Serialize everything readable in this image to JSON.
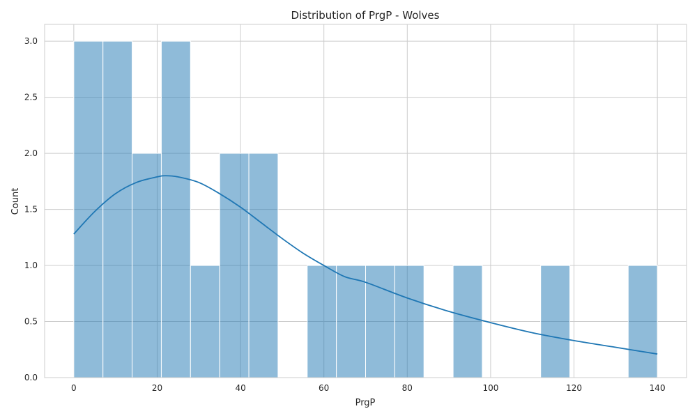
{
  "chart_data": {
    "type": "bar",
    "title": "Distribution of PrgP - Wolves",
    "xlabel": "PrgP",
    "ylabel": "Count",
    "xlim": [
      -7,
      147
    ],
    "ylim": [
      0,
      3.15
    ],
    "xticks": [
      0,
      20,
      40,
      60,
      80,
      100,
      120,
      140
    ],
    "xtick_labels": [
      "0",
      "20",
      "40",
      "60",
      "80",
      "100",
      "120",
      "140"
    ],
    "yticks": [
      0,
      0.5,
      1.0,
      1.5,
      2.0,
      2.5,
      3.0
    ],
    "ytick_labels": [
      "0.0",
      "0.5",
      "1.0",
      "1.5",
      "2.0",
      "2.5",
      "3.0"
    ],
    "grid": true,
    "bin_edges": [
      0,
      7,
      14,
      21,
      28,
      35,
      42,
      49,
      56,
      63,
      70,
      77,
      84,
      91,
      98,
      105,
      112,
      119,
      126,
      133,
      140
    ],
    "counts": [
      3,
      3,
      2,
      3,
      1,
      2,
      2,
      0,
      1,
      1,
      1,
      1,
      0,
      1,
      0,
      0,
      1,
      0,
      0,
      1
    ],
    "kde": {
      "x": [
        0,
        5,
        10,
        15,
        20,
        22,
        25,
        30,
        35,
        40,
        45,
        50,
        55,
        60,
        65,
        70,
        80,
        90,
        100,
        110,
        120,
        130,
        140
      ],
      "y": [
        1.28,
        1.48,
        1.64,
        1.74,
        1.79,
        1.8,
        1.79,
        1.74,
        1.64,
        1.52,
        1.38,
        1.24,
        1.11,
        1.0,
        0.9,
        0.85,
        0.71,
        0.59,
        0.49,
        0.4,
        0.33,
        0.27,
        0.21
      ]
    },
    "colors": {
      "bar_fill": "#1f77b4",
      "bar_opacity": 0.5,
      "bar_edge": "#ffffff",
      "kde_line": "#1f77b4",
      "grid": "#cccccc",
      "text": "#262626"
    }
  }
}
